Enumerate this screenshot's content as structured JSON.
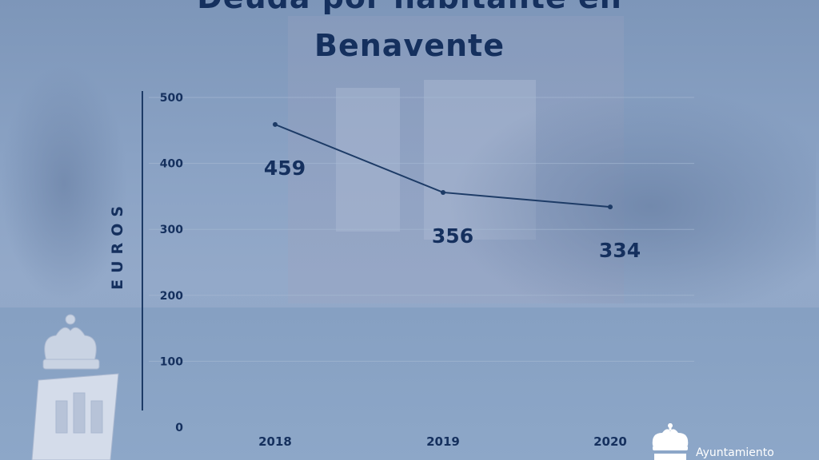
{
  "chart_data": {
    "type": "line",
    "title_line1": "Deuda por habitante en",
    "title_line2": "Benavente",
    "ylabel": "EUROS",
    "xlabel": "",
    "x": [
      "2018",
      "2019",
      "2020"
    ],
    "series": [
      {
        "values": [
          459,
          356,
          334
        ],
        "labels": [
          "459",
          "356",
          "334"
        ]
      }
    ],
    "ylim": [
      0,
      500
    ],
    "yticks": [
      "0",
      "100",
      "200",
      "300",
      "400",
      "500"
    ],
    "grid": true,
    "legend": "none",
    "colors": {
      "line": "#1d3b66",
      "text": "#15305e",
      "grid": "#a9bad4"
    }
  },
  "logo": {
    "text": "Ayuntamiento"
  }
}
